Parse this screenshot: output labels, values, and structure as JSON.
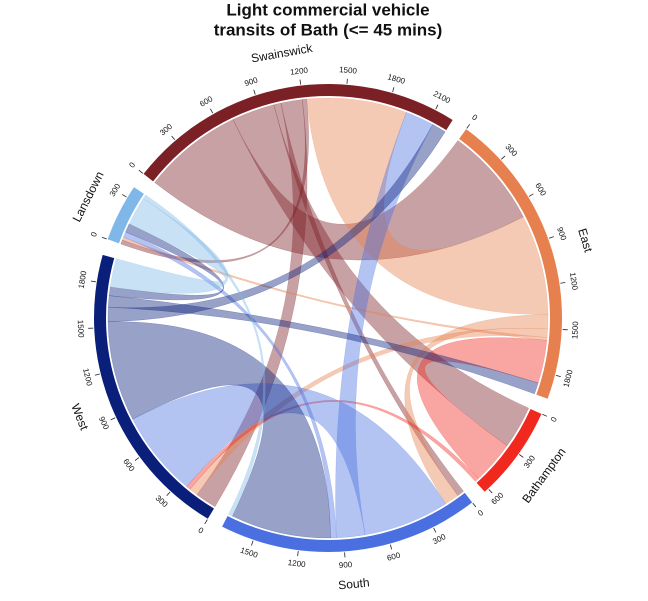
{
  "chart_data": {
    "type": "chord",
    "title": [
      "Light commercial vehicle",
      "transits of Bath (<= 45 mins)"
    ],
    "sectors": [
      {
        "name": "Swainswick",
        "color": "#7b2025",
        "ticks": [
          0,
          300,
          600,
          900,
          1200,
          1500,
          1800,
          2100
        ]
      },
      {
        "name": "East",
        "color": "#e6804e",
        "ticks": [
          0,
          300,
          600,
          900,
          1200,
          1500,
          1800
        ]
      },
      {
        "name": "Bathampton",
        "color": "#f0281e",
        "ticks": [
          0,
          300,
          600
        ]
      },
      {
        "name": "South",
        "color": "#4a6fe0",
        "ticks": [
          0,
          300,
          600,
          900,
          1200,
          1500
        ]
      },
      {
        "name": "West",
        "color": "#0a1f7a",
        "ticks": [
          0,
          300,
          600,
          900,
          1200,
          1500,
          1800
        ]
      },
      {
        "name": "Lansdown",
        "color": "#7fb8e8",
        "ticks": [
          0,
          300
        ]
      }
    ],
    "chords": [
      {
        "source": "Swainswick",
        "target": "East",
        "value": 700
      },
      {
        "source": "Swainswick",
        "target": "Bathampton",
        "value": 300
      },
      {
        "source": "Swainswick",
        "target": "South",
        "value": 50
      },
      {
        "source": "Swainswick",
        "target": "West",
        "value": 150
      },
      {
        "source": "Swainswick",
        "target": "Lansdown",
        "value": 30
      },
      {
        "source": "East",
        "target": "Swainswick",
        "value": 700
      },
      {
        "source": "East",
        "target": "South",
        "value": 100
      },
      {
        "source": "East",
        "target": "West",
        "value": 60
      },
      {
        "source": "East",
        "target": "Lansdown",
        "value": 20
      },
      {
        "source": "Bathampton",
        "target": "East",
        "value": 300
      },
      {
        "source": "Bathampton",
        "target": "West",
        "value": 30
      },
      {
        "source": "South",
        "target": "West",
        "value": 600
      },
      {
        "source": "South",
        "target": "Swainswick",
        "value": 200
      },
      {
        "source": "South",
        "target": "Lansdown",
        "value": 40
      },
      {
        "source": "West",
        "target": "South",
        "value": 700
      },
      {
        "source": "West",
        "target": "Swainswick",
        "value": 100
      },
      {
        "source": "West",
        "target": "East",
        "value": 80
      },
      {
        "source": "West",
        "target": "Lansdown",
        "value": 60
      },
      {
        "source": "Lansdown",
        "target": "West",
        "value": 200
      },
      {
        "source": "Lansdown",
        "target": "South",
        "value": 30
      }
    ]
  }
}
